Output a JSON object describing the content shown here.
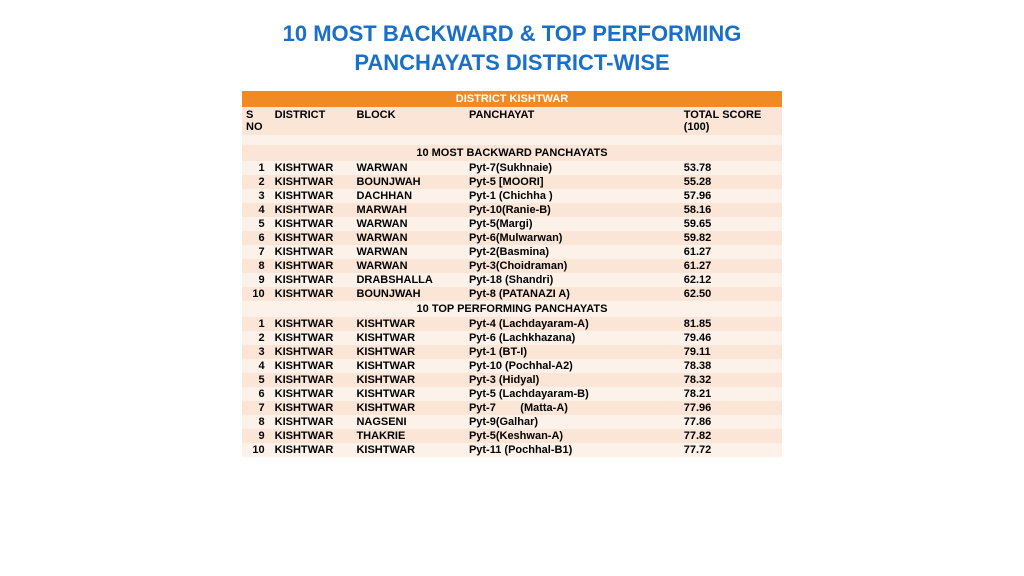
{
  "title_line1": "10 MOST BACKWARD & TOP PERFORMING",
  "title_line2": "PANCHAYATS DISTRICT-WISE",
  "district_header": "DISTRICT KISHTWAR",
  "columns": {
    "sno_l1": "S",
    "sno_l2": "NO",
    "district": "DISTRICT",
    "block": "BLOCK",
    "panchayat": "PANCHAYAT",
    "score_l1": "TOTAL SCORE",
    "score_l2": "(100)"
  },
  "section1_header": "10 MOST BACKWARD PANCHAYATS",
  "section1_rows": [
    {
      "sno": "1",
      "district": "KISHTWAR",
      "block": "WARWAN",
      "panchayat": "Pyt-7(Sukhnaie)",
      "score": "53.78"
    },
    {
      "sno": "2",
      "district": "KISHTWAR",
      "block": "BOUNJWAH",
      "panchayat": "Pyt-5 [MOORI]",
      "score": "55.28"
    },
    {
      "sno": "3",
      "district": "KISHTWAR",
      "block": "DACHHAN",
      "panchayat": "Pyt-1 (Chichha )",
      "score": "57.96"
    },
    {
      "sno": "4",
      "district": "KISHTWAR",
      "block": "MARWAH",
      "panchayat": "Pyt-10(Ranie-B)",
      "score": "58.16"
    },
    {
      "sno": "5",
      "district": "KISHTWAR",
      "block": "WARWAN",
      "panchayat": "Pyt-5(Margi)",
      "score": "59.65"
    },
    {
      "sno": "6",
      "district": "KISHTWAR",
      "block": "WARWAN",
      "panchayat": "Pyt-6(Mulwarwan)",
      "score": "59.82"
    },
    {
      "sno": "7",
      "district": "KISHTWAR",
      "block": "WARWAN",
      "panchayat": "Pyt-2(Basmina)",
      "score": "61.27"
    },
    {
      "sno": "8",
      "district": "KISHTWAR",
      "block": "WARWAN",
      "panchayat": "Pyt-3(Choidraman)",
      "score": "61.27"
    },
    {
      "sno": "9",
      "district": "KISHTWAR",
      "block": "DRABSHALLA",
      "panchayat": "Pyt-18 (Shandri)",
      "score": "62.12"
    },
    {
      "sno": "10",
      "district": "KISHTWAR",
      "block": "BOUNJWAH",
      "panchayat": "Pyt-8 (PATANAZI A)",
      "score": "62.50"
    }
  ],
  "section2_header": "10 TOP PERFORMING PANCHAYATS",
  "section2_rows": [
    {
      "sno": "1",
      "district": "KISHTWAR",
      "block": "KISHTWAR",
      "panchayat": "Pyt-4 (Lachdayaram-A)",
      "score": "81.85"
    },
    {
      "sno": "2",
      "district": "KISHTWAR",
      "block": "KISHTWAR",
      "panchayat": "Pyt-6 (Lachkhazana)",
      "score": "79.46"
    },
    {
      "sno": "3",
      "district": "KISHTWAR",
      "block": "KISHTWAR",
      "panchayat": "Pyt-1  (BT-I)",
      "score": "79.11"
    },
    {
      "sno": "4",
      "district": "KISHTWAR",
      "block": "KISHTWAR",
      "panchayat": "Pyt-10  (Pochhal-A2)",
      "score": "78.38"
    },
    {
      "sno": "5",
      "district": "KISHTWAR",
      "block": "KISHTWAR",
      "panchayat": "Pyt-3 (Hidyal)",
      "score": "78.32"
    },
    {
      "sno": "6",
      "district": "KISHTWAR",
      "block": "KISHTWAR",
      "panchayat": "Pyt-5 (Lachdayaram-B)",
      "score": "78.21"
    },
    {
      "sno": "7",
      "district": "KISHTWAR",
      "block": "KISHTWAR",
      "panchayat": "Pyt-7        (Matta-A)",
      "score": "77.96"
    },
    {
      "sno": "8",
      "district": "KISHTWAR",
      "block": "NAGSENI",
      "panchayat": "Pyt-9(Galhar)",
      "score": "77.86"
    },
    {
      "sno": "9",
      "district": "KISHTWAR",
      "block": "THAKRIE",
      "panchayat": "Pyt-5(Keshwan-A)",
      "score": "77.82"
    },
    {
      "sno": "10",
      "district": "KISHTWAR",
      "block": "KISHTWAR",
      "panchayat": "Pyt-11  (Pochhal-B1)",
      "score": "77.72"
    }
  ],
  "colors": {
    "title": "#1a6fc9",
    "header_bg": "#f08a24",
    "header_fg": "#ffffff",
    "band_light": "#fdf2ea",
    "band_dark": "#fbe5d6",
    "text": "#000000",
    "background": "#ffffff"
  }
}
